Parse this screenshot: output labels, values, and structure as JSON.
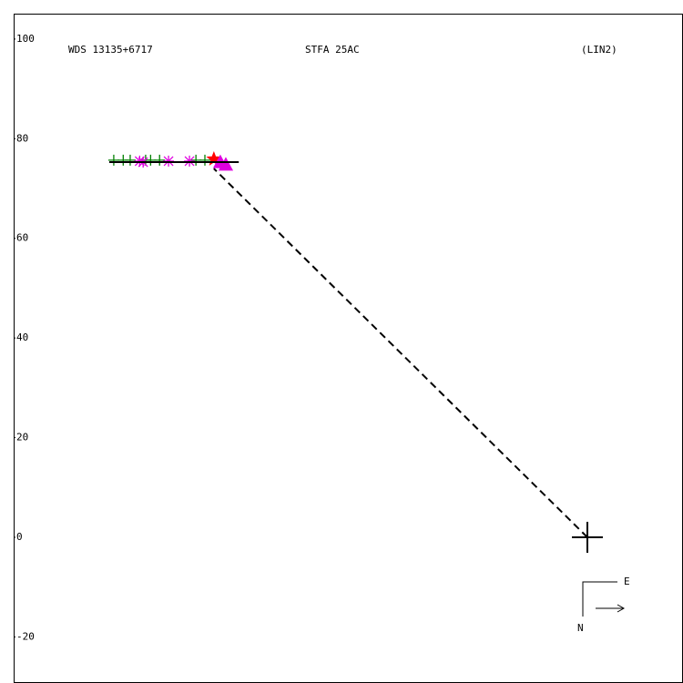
{
  "chart_data": {
    "type": "scatter",
    "title": "WDS 13135+6717",
    "subtitle": "STFA 25AC",
    "annotation": "(LIN2)",
    "xlim": [
      -115.2,
      19.2
    ],
    "ylim": [
      -29.25,
      105.1
    ],
    "yticks": [
      -20,
      0,
      20,
      40,
      60,
      80,
      100
    ],
    "series": [
      {
        "color": "#008000",
        "marker": "plus",
        "x": [
          -95.1,
          -93.2,
          -91.8,
          -88.7,
          -87.7,
          -85.9,
          -78.6,
          -76.8
        ],
        "values": [
          75.7,
          75.7,
          75.7,
          75.7,
          75.7,
          75.7,
          75.7,
          75.7
        ]
      },
      {
        "color": "#e000e0",
        "marker": "asterisk",
        "x": [
          -89.9,
          -89.2,
          -84.1,
          -79.9
        ],
        "values": [
          75.5,
          75.3,
          75.5,
          75.5
        ]
      },
      {
        "color": "#ff0000",
        "marker": "star",
        "x": [
          -75.0
        ],
        "values": [
          75.9
        ]
      },
      {
        "color": "#e000e0",
        "marker": "triangle",
        "x": [
          -73.7,
          -72.6
        ],
        "values": [
          75.3,
          74.8
        ]
      }
    ],
    "orbit": {
      "color": "#000000",
      "x": [
        -96.0,
        -70.0
      ],
      "values": [
        75.3,
        75.3
      ]
    },
    "residual": {
      "color": "#000000",
      "x": [
        0,
        -75.0
      ],
      "values": [
        0,
        74.0
      ]
    },
    "primary": {
      "x": 0,
      "y": 0
    },
    "compass": {
      "east": "E",
      "north": "N"
    }
  }
}
